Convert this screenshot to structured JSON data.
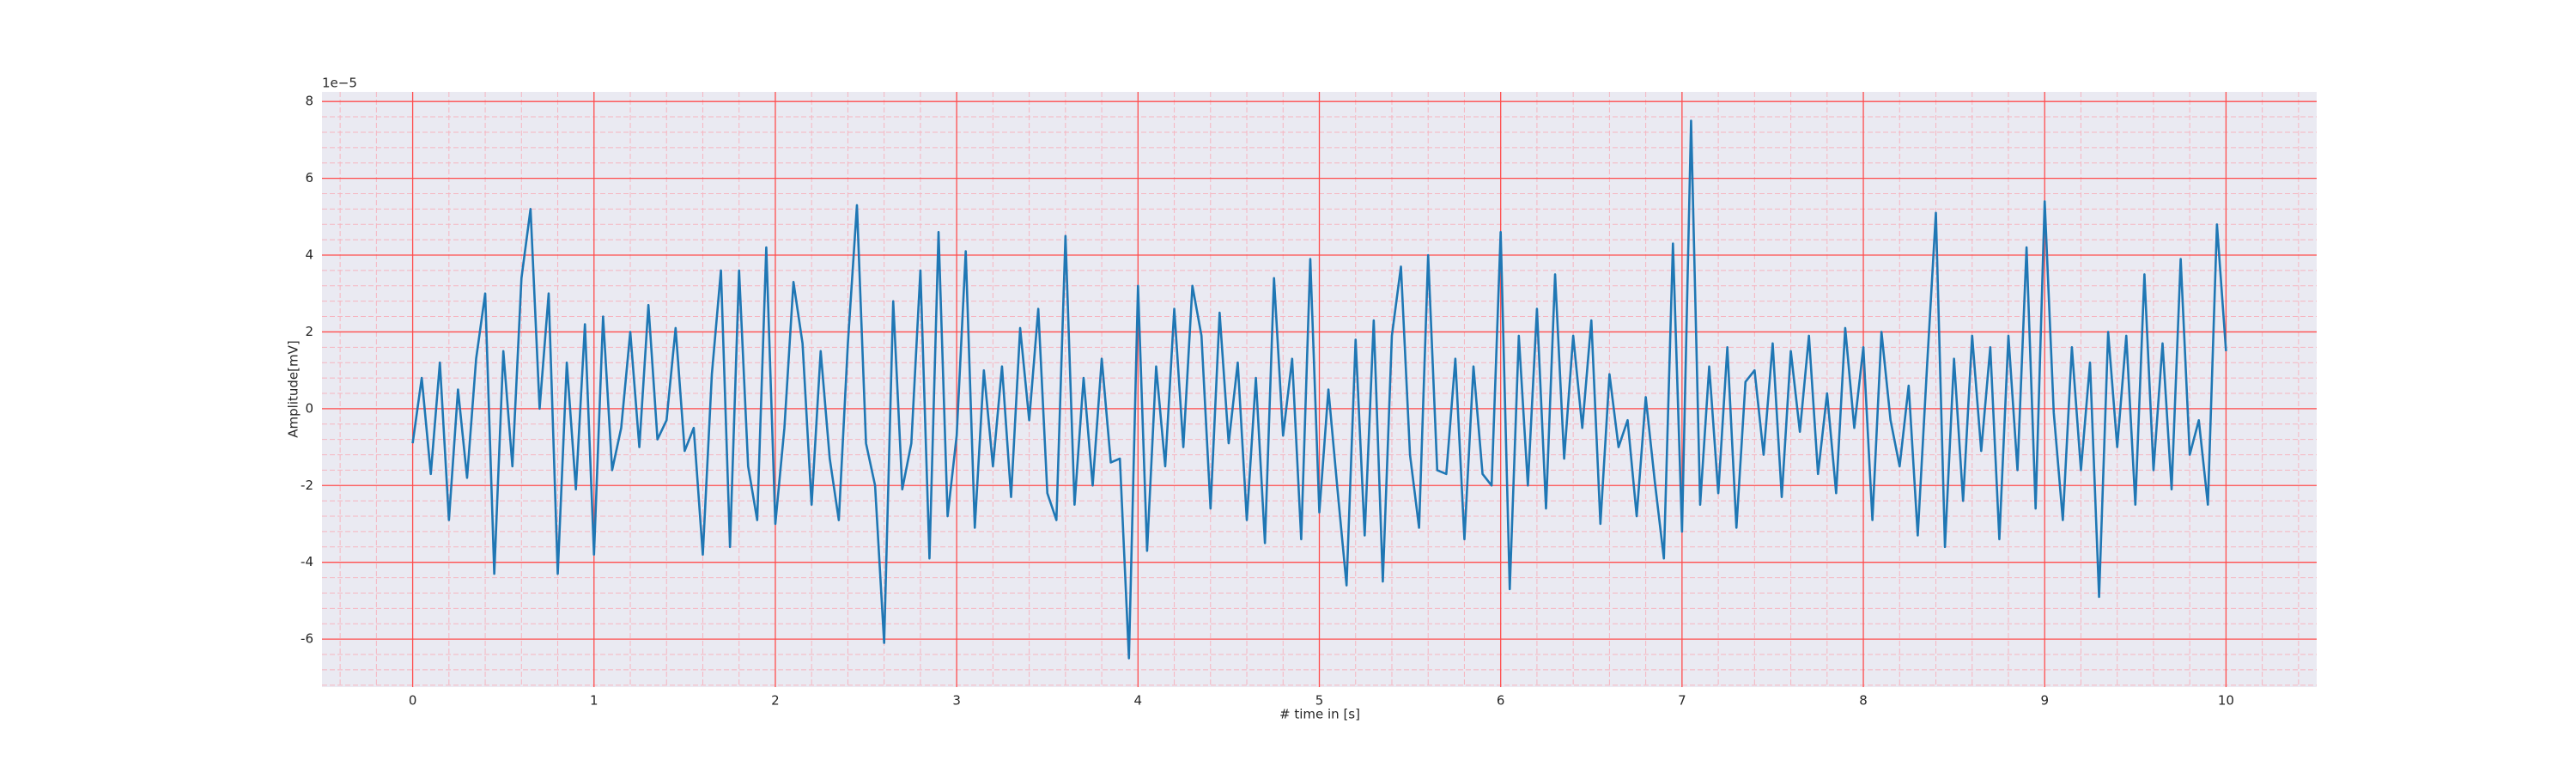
{
  "chart_data": {
    "type": "line",
    "offset_label": "1e−5",
    "xlabel": "# time in [s]",
    "ylabel": "Amplitude[mV]",
    "color": "#1f77b4",
    "grid": true,
    "grid_color": "#ff4d4d",
    "minor_grid": true,
    "minor_grid_color": "#f6b5c0",
    "background": "#eaeaf2",
    "xlim": [
      -0.5,
      10.5
    ],
    "ylim": [
      -7.25,
      8.25
    ],
    "xticks": [
      0,
      1,
      2,
      3,
      4,
      5,
      6,
      7,
      8,
      9,
      10
    ],
    "yticks": [
      -6,
      -4,
      -2,
      0,
      2,
      4,
      6,
      8
    ],
    "x": [
      0,
      0.05,
      0.1,
      0.15,
      0.2,
      0.25,
      0.3,
      0.35,
      0.4,
      0.45,
      0.5,
      0.55,
      0.6,
      0.65,
      0.7,
      0.75,
      0.8,
      0.85,
      0.9,
      0.95,
      1,
      1.05,
      1.1,
      1.15,
      1.2,
      1.25,
      1.3,
      1.35,
      1.4,
      1.45,
      1.5,
      1.55,
      1.6,
      1.65,
      1.7,
      1.75,
      1.8,
      1.85,
      1.9,
      1.95,
      2,
      2.05,
      2.1,
      2.15,
      2.2,
      2.25,
      2.3,
      2.35,
      2.4,
      2.45,
      2.5,
      2.55,
      2.6,
      2.65,
      2.7,
      2.75,
      2.8,
      2.85,
      2.9,
      2.95,
      3,
      3.05,
      3.1,
      3.15,
      3.2,
      3.25,
      3.3,
      3.35,
      3.4,
      3.45,
      3.5,
      3.55,
      3.6,
      3.65,
      3.7,
      3.75,
      3.8,
      3.85,
      3.9,
      3.95,
      4,
      4.05,
      4.1,
      4.15,
      4.2,
      4.25,
      4.3,
      4.35,
      4.4,
      4.45,
      4.5,
      4.55,
      4.6,
      4.65,
      4.7,
      4.75,
      4.8,
      4.85,
      4.9,
      4.95,
      5,
      5.05,
      5.1,
      5.15,
      5.2,
      5.25,
      5.3,
      5.35,
      5.4,
      5.45,
      5.5,
      5.55,
      5.6,
      5.65,
      5.7,
      5.75,
      5.8,
      5.85,
      5.9,
      5.95,
      6,
      6.05,
      6.1,
      6.15,
      6.2,
      6.25,
      6.3,
      6.35,
      6.4,
      6.45,
      6.5,
      6.55,
      6.6,
      6.65,
      6.7,
      6.75,
      6.8,
      6.85,
      6.9,
      6.95,
      7,
      7.05,
      7.1,
      7.15,
      7.2,
      7.25,
      7.3,
      7.35,
      7.4,
      7.45,
      7.5,
      7.55,
      7.6,
      7.65,
      7.7,
      7.75,
      7.8,
      7.85,
      7.9,
      7.95,
      8,
      8.05,
      8.1,
      8.15,
      8.2,
      8.25,
      8.3,
      8.35,
      8.4,
      8.45,
      8.5,
      8.55,
      8.6,
      8.65,
      8.7,
      8.75,
      8.8,
      8.85,
      8.9,
      8.95,
      9,
      9.05,
      9.1,
      9.15,
      9.2,
      9.25,
      9.3,
      9.35,
      9.4,
      9.45,
      9.5,
      9.55,
      9.6,
      9.65,
      9.7,
      9.75,
      9.8,
      9.85,
      9.9,
      9.95,
      10
    ],
    "values": [
      -0.9,
      0.8,
      -1.7,
      1.2,
      -2.9,
      0.5,
      -1.8,
      1.3,
      3.0,
      -4.3,
      1.5,
      -1.5,
      3.4,
      5.2,
      0.0,
      3.0,
      -4.3,
      1.2,
      -2.1,
      2.2,
      -3.8,
      2.4,
      -1.6,
      -0.5,
      2.0,
      -1.0,
      2.7,
      -0.8,
      -0.3,
      2.1,
      -1.1,
      -0.5,
      -3.8,
      0.9,
      3.6,
      -3.6,
      3.6,
      -1.5,
      -2.9,
      4.2,
      -3.0,
      -0.5,
      3.3,
      1.7,
      -2.5,
      1.5,
      -1.3,
      -2.9,
      1.7,
      5.3,
      -0.9,
      -2.0,
      -6.1,
      2.8,
      -2.1,
      -0.9,
      3.6,
      -3.9,
      4.6,
      -2.8,
      -0.7,
      4.1,
      -3.1,
      1.0,
      -1.5,
      1.1,
      -2.3,
      2.1,
      -0.3,
      2.6,
      -2.2,
      -2.9,
      4.5,
      -2.5,
      0.8,
      -2.0,
      1.3,
      -1.4,
      -1.3,
      -6.5,
      3.2,
      -3.7,
      1.1,
      -1.5,
      2.6,
      -1.0,
      3.2,
      1.9,
      -2.6,
      2.5,
      -0.9,
      1.2,
      -2.9,
      0.8,
      -3.5,
      3.4,
      -0.7,
      1.3,
      -3.4,
      3.9,
      -2.7,
      0.5,
      -2.1,
      -4.6,
      1.8,
      -3.3,
      2.3,
      -4.5,
      1.9,
      3.7,
      -1.2,
      -3.1,
      4.0,
      -1.6,
      -1.7,
      1.3,
      -3.4,
      1.1,
      -1.7,
      -2.0,
      4.6,
      -4.7,
      1.9,
      -2.0,
      2.6,
      -2.6,
      3.5,
      -1.3,
      1.9,
      -0.5,
      2.3,
      -3.0,
      0.9,
      -1.0,
      -0.3,
      -2.8,
      0.3,
      -1.9,
      -3.9,
      4.3,
      -3.2,
      7.5,
      -2.5,
      1.1,
      -2.2,
      1.6,
      -3.1,
      0.7,
      1.0,
      -1.2,
      1.7,
      -2.3,
      1.5,
      -0.6,
      1.9,
      -1.7,
      0.4,
      -2.2,
      2.1,
      -0.5,
      1.6,
      -2.9,
      2.0,
      -0.3,
      -1.5,
      0.6,
      -3.3,
      1.0,
      5.1,
      -3.6,
      1.3,
      -2.4,
      1.9,
      -1.1,
      1.6,
      -3.4,
      1.9,
      -1.6,
      4.2,
      -2.6,
      5.4,
      -0.1,
      -2.9,
      1.6,
      -1.6,
      1.2,
      -4.9,
      2.0,
      -1.0,
      1.9,
      -2.5,
      3.5,
      -1.6,
      1.7,
      -2.1,
      3.9,
      -1.2,
      -0.3,
      -2.5,
      4.8,
      1.5
    ]
  }
}
